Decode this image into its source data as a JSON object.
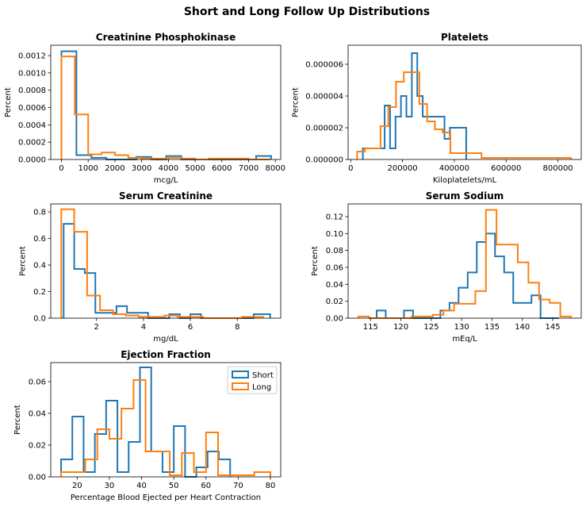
{
  "figure_title": "Short and Long Follow Up Distributions",
  "colors": {
    "short": "#1f77b4",
    "long": "#ff7f0e"
  },
  "legend": {
    "placement": "top-right",
    "panel": 4,
    "items": [
      "Short",
      "Long"
    ]
  },
  "chart_data": [
    {
      "type": "histogram",
      "title": "Creatinine Phosphokinase",
      "xlabel": "mcg/L",
      "ylabel": "Percent",
      "xlim": [
        -400,
        8200
      ],
      "ylim": [
        0,
        0.00132
      ],
      "xticks": [
        0,
        1000,
        2000,
        3000,
        4000,
        5000,
        6000,
        7000,
        8000
      ],
      "xtick_labels": [
        "0",
        "1000",
        "2000",
        "3000",
        "4000",
        "5000",
        "6000",
        "7000",
        "8000"
      ],
      "yticks": [
        0,
        0.0002,
        0.0004,
        0.0006,
        0.0008,
        0.001,
        0.0012
      ],
      "ytick_labels": [
        "0.0000",
        "0.0002",
        "0.0004",
        "0.0006",
        "0.0008",
        "0.0010",
        "0.0012"
      ],
      "series": [
        {
          "name": "Short",
          "edges": [
            0,
            560,
            1120,
            1680,
            2240,
            2800,
            3360,
            3920,
            4480,
            5040,
            5600,
            6160,
            6720,
            7280,
            7840
          ],
          "values": [
            0.00125,
            5e-05,
            2e-05,
            0,
            0,
            3e-05,
            0,
            4e-05,
            0,
            0,
            0,
            0,
            0,
            4e-05
          ]
        },
        {
          "name": "Long",
          "edges": [
            0,
            500,
            1000,
            1500,
            2000,
            2500,
            3000,
            3500,
            4000,
            4500,
            5000,
            5500,
            6000,
            6500,
            7000,
            7500,
            7800
          ],
          "values": [
            0.00119,
            0.00052,
            6e-05,
            8e-05,
            5e-05,
            2e-05,
            1e-05,
            1e-05,
            2e-05,
            1e-05,
            0,
            1e-05,
            1e-05,
            1e-05,
            0,
            0
          ]
        }
      ]
    },
    {
      "type": "histogram",
      "title": "Platelets",
      "xlabel": "Kiloplatelets/mL",
      "ylabel": "Percent",
      "xlim": [
        -10000,
        890000
      ],
      "ylim": [
        0,
        7.2e-06
      ],
      "xticks": [
        0,
        200000,
        400000,
        600000,
        800000
      ],
      "xtick_labels": [
        "0",
        "200000",
        "400000",
        "600000",
        "800000"
      ],
      "yticks": [
        0,
        2e-06,
        4e-06,
        6e-06
      ],
      "ytick_labels": [
        "0.000000",
        "0.000002",
        "0.000004",
        "0.000006"
      ],
      "series": [
        {
          "name": "Short",
          "edges": [
            47000,
            68000,
            89000,
            110000,
            131000,
            152000,
            173000,
            194000,
            215000,
            236000,
            257000,
            278000,
            299000,
            320000,
            341000,
            362000,
            383000,
            404000,
            425000,
            446000
          ],
          "values": [
            7e-07,
            7e-07,
            7e-07,
            7e-07,
            3.4e-06,
            7e-07,
            2.7e-06,
            4e-06,
            2.7e-06,
            6.7e-06,
            4e-06,
            2.7e-06,
            2.7e-06,
            2.7e-06,
            2.7e-06,
            1.3e-06,
            2e-06,
            2e-06,
            2e-06
          ]
        },
        {
          "name": "Long",
          "edges": [
            25000,
            55000,
            85000,
            115000,
            145000,
            175000,
            205000,
            235000,
            265000,
            295000,
            325000,
            355000,
            385000,
            415000,
            445000,
            475000,
            505000,
            535000,
            565000,
            595000,
            625000,
            655000,
            685000,
            715000,
            745000,
            775000,
            805000,
            850000
          ],
          "values": [
            5e-07,
            7e-07,
            7e-07,
            2.1e-06,
            3.3e-06,
            4.9e-06,
            5.5e-06,
            5.5e-06,
            3.5e-06,
            2.4e-06,
            1.9e-06,
            1.7e-06,
            4e-07,
            4e-07,
            4e-07,
            4e-07,
            1e-07,
            1e-07,
            1e-07,
            1e-07,
            1e-07,
            1e-07,
            1e-07,
            1e-07,
            1e-07,
            1e-07,
            1e-07
          ]
        }
      ]
    },
    {
      "type": "histogram",
      "title": "Serum Creatinine",
      "xlabel": "mg/dL",
      "ylabel": "Percent",
      "xlim": [
        0.05,
        9.85
      ],
      "ylim": [
        0,
        0.86
      ],
      "xticks": [
        2,
        4,
        6,
        8
      ],
      "xtick_labels": [
        "2",
        "4",
        "6",
        "8"
      ],
      "yticks": [
        0,
        0.2,
        0.4,
        0.6,
        0.8
      ],
      "ytick_labels": [
        "0.0",
        "0.2",
        "0.4",
        "0.6",
        "0.8"
      ],
      "series": [
        {
          "name": "Short",
          "edges": [
            0.6,
            1.05,
            1.5,
            1.95,
            2.4,
            2.85,
            3.3,
            3.75,
            4.2,
            4.65,
            5.1,
            5.55,
            6.0,
            6.45,
            6.9,
            7.35,
            7.8,
            8.25,
            8.7,
            9.15,
            9.4
          ],
          "values": [
            0.71,
            0.37,
            0.34,
            0.04,
            0.04,
            0.09,
            0.04,
            0.04,
            0,
            0,
            0.03,
            0,
            0.03,
            0,
            0,
            0,
            0,
            0,
            0.03,
            0.03
          ]
        },
        {
          "name": "Long",
          "edges": [
            0.5,
            1.05,
            1.6,
            2.15,
            2.7,
            3.25,
            3.8,
            4.35,
            4.9,
            5.45,
            6.0,
            6.55,
            7.1,
            7.65,
            8.2,
            8.75,
            9.1
          ],
          "values": [
            0.82,
            0.65,
            0.17,
            0.06,
            0.03,
            0.02,
            0.01,
            0.01,
            0.02,
            0.01,
            0.01,
            0,
            0,
            0,
            0.01,
            0.01
          ]
        }
      ]
    },
    {
      "type": "histogram",
      "title": "Serum Sodium",
      "xlabel": "mEq/L",
      "ylabel": "Percent",
      "xlim": [
        111.3,
        149.7
      ],
      "ylim": [
        0,
        0.135
      ],
      "xticks": [
        115,
        120,
        125,
        130,
        135,
        140,
        145
      ],
      "xtick_labels": [
        "115",
        "120",
        "125",
        "130",
        "135",
        "140",
        "145"
      ],
      "yticks": [
        0,
        0.02,
        0.04,
        0.06,
        0.08,
        0.1,
        0.12
      ],
      "ytick_labels": [
        "0.00",
        "0.02",
        "0.04",
        "0.06",
        "0.08",
        "0.10",
        "0.12"
      ],
      "series": [
        {
          "name": "Short",
          "edges": [
            116,
            117.5,
            119,
            120.5,
            122,
            123.5,
            125,
            126.5,
            128,
            129.5,
            131,
            132.5,
            134,
            135.5,
            137,
            138.5,
            140,
            141.5,
            143,
            144.5,
            146
          ],
          "values": [
            0.009,
            0,
            0,
            0.009,
            0,
            0,
            0,
            0.009,
            0.018,
            0.036,
            0.054,
            0.09,
            0.1,
            0.073,
            0.054,
            0.018,
            0.018,
            0.027,
            0,
            0
          ]
        },
        {
          "name": "Long",
          "edges": [
            113,
            114.75,
            116.5,
            118.25,
            120,
            121.75,
            123.5,
            125.25,
            127,
            128.75,
            130.5,
            132.25,
            134,
            135.75,
            137.5,
            139.25,
            141,
            142.75,
            144.5,
            146.25,
            148
          ],
          "values": [
            0.002,
            0,
            0,
            0,
            0,
            0.002,
            0.002,
            0.004,
            0.009,
            0.017,
            0.017,
            0.032,
            0.128,
            0.087,
            0.087,
            0.066,
            0.042,
            0.022,
            0.018,
            0.002
          ]
        }
      ]
    },
    {
      "type": "histogram",
      "title": "Ejection Fraction",
      "xlabel": "Percentage Blood Ejected per Heart Contraction",
      "ylabel": "Percent",
      "xlim": [
        11.8,
        83.2
      ],
      "ylim": [
        0,
        0.072
      ],
      "xticks": [
        20,
        30,
        40,
        50,
        60,
        70,
        80
      ],
      "xtick_labels": [
        "20",
        "30",
        "40",
        "50",
        "60",
        "70",
        "80"
      ],
      "yticks": [
        0,
        0.02,
        0.04,
        0.06
      ],
      "ytick_labels": [
        "0.00",
        "0.02",
        "0.04",
        "0.06"
      ],
      "series": [
        {
          "name": "Short",
          "edges": [
            15,
            18.5,
            22,
            25.5,
            29,
            32.5,
            36,
            39.5,
            43,
            46.5,
            50,
            53.5,
            57,
            60.5,
            64,
            67.5
          ],
          "values": [
            0.011,
            0.038,
            0.003,
            0.027,
            0.048,
            0.003,
            0.022,
            0.069,
            0.016,
            0.003,
            0.032,
            0,
            0.006,
            0.016,
            0.011
          ]
        },
        {
          "name": "Long",
          "edges": [
            15,
            18.75,
            22.5,
            26.25,
            30,
            33.75,
            37.5,
            41.25,
            45,
            48.75,
            52.5,
            56.25,
            60,
            63.75,
            67.5,
            71.25,
            75,
            78.75,
            80
          ],
          "values": [
            0.003,
            0.003,
            0.011,
            0.03,
            0.024,
            0.043,
            0.061,
            0.016,
            0.016,
            0.001,
            0.015,
            0.003,
            0.028,
            0.001,
            0.001,
            0.001,
            0.003,
            0.003
          ]
        }
      ]
    }
  ]
}
